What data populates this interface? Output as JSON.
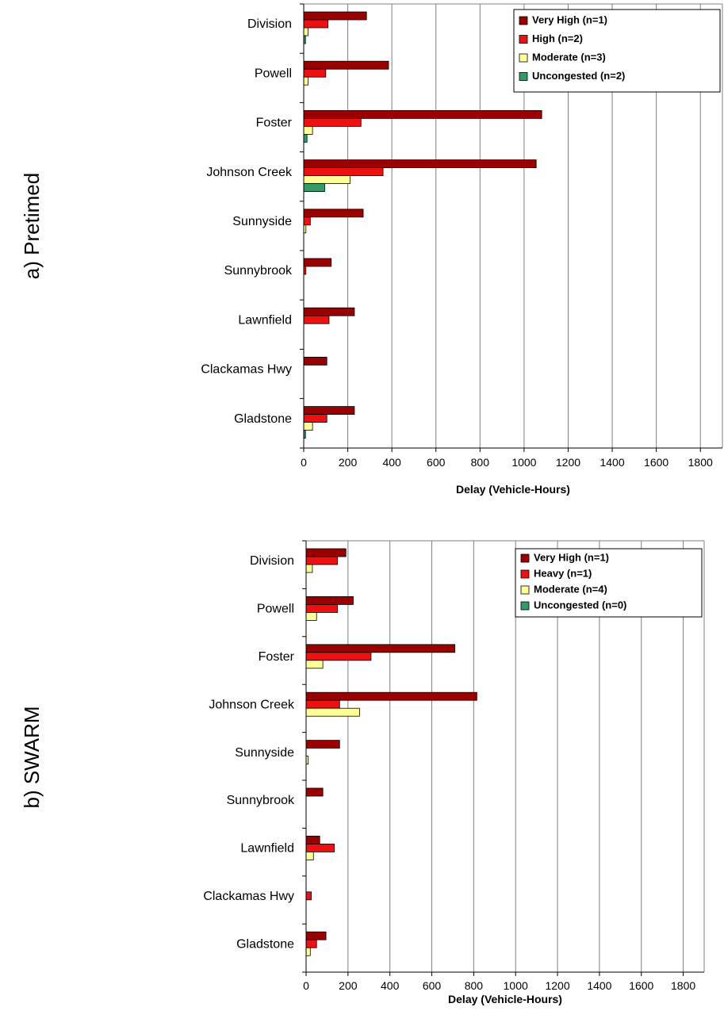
{
  "chart_data": [
    {
      "type": "bar",
      "orientation": "horizontal",
      "panel_label": "a)  Pretimed",
      "xlabel": "Delay (Vehicle-Hours)",
      "xlim": [
        0,
        1900
      ],
      "xticks": [
        "0",
        "200",
        "400",
        "600",
        "800",
        "1000",
        "1200",
        "1400",
        "1600",
        "1800"
      ],
      "grid": true,
      "legend_position": "top-right",
      "categories": [
        "Division",
        "Powell",
        "Foster",
        "Johnson Creek",
        "Sunnyside",
        "Sunnybrook",
        "Lawnfield",
        "Clackamas Hwy",
        "Gladstone"
      ],
      "series": [
        {
          "name": "Very High (n=1)",
          "color": "#990000",
          "values": [
            285,
            385,
            1080,
            1055,
            270,
            125,
            230,
            105,
            230
          ]
        },
        {
          "name": "High (n=2)",
          "color": "#ee1111",
          "values": [
            110,
            100,
            260,
            360,
            30,
            10,
            115,
            0,
            105
          ]
        },
        {
          "name": "Moderate (n=3)",
          "color": "#ffff99",
          "values": [
            20,
            20,
            40,
            210,
            10,
            0,
            0,
            0,
            40
          ]
        },
        {
          "name": "Uncongested (n=2)",
          "color": "#339966",
          "values": [
            8,
            0,
            15,
            95,
            0,
            0,
            0,
            0,
            8
          ]
        }
      ]
    },
    {
      "type": "bar",
      "orientation": "horizontal",
      "panel_label": "b)  SWARM",
      "xlabel": "Delay (Vehicle-Hours)",
      "xlim": [
        0,
        1900
      ],
      "xticks": [
        "0",
        "200",
        "400",
        "600",
        "800",
        "1000",
        "1200",
        "1400",
        "1600",
        "1800"
      ],
      "grid": true,
      "legend_position": "top-right",
      "categories": [
        "Division",
        "Powell",
        "Foster",
        "Johnson Creek",
        "Sunnyside",
        "Sunnybrook",
        "Lawnfield",
        "Clackamas Hwy",
        "Gladstone"
      ],
      "series": [
        {
          "name": "Very High (n=1)",
          "color": "#990000",
          "values": [
            190,
            225,
            710,
            815,
            160,
            80,
            65,
            0,
            95
          ]
        },
        {
          "name": "Heavy (n=1)",
          "color": "#ee1111",
          "values": [
            150,
            150,
            310,
            160,
            0,
            0,
            135,
            25,
            50
          ]
        },
        {
          "name": "Moderate (n=4)",
          "color": "#ffff99",
          "values": [
            30,
            50,
            80,
            255,
            10,
            0,
            35,
            0,
            20
          ]
        },
        {
          "name": "Uncongested (n=0)",
          "color": "#339966",
          "values": [
            0,
            0,
            0,
            0,
            0,
            0,
            0,
            0,
            0
          ]
        }
      ]
    }
  ]
}
